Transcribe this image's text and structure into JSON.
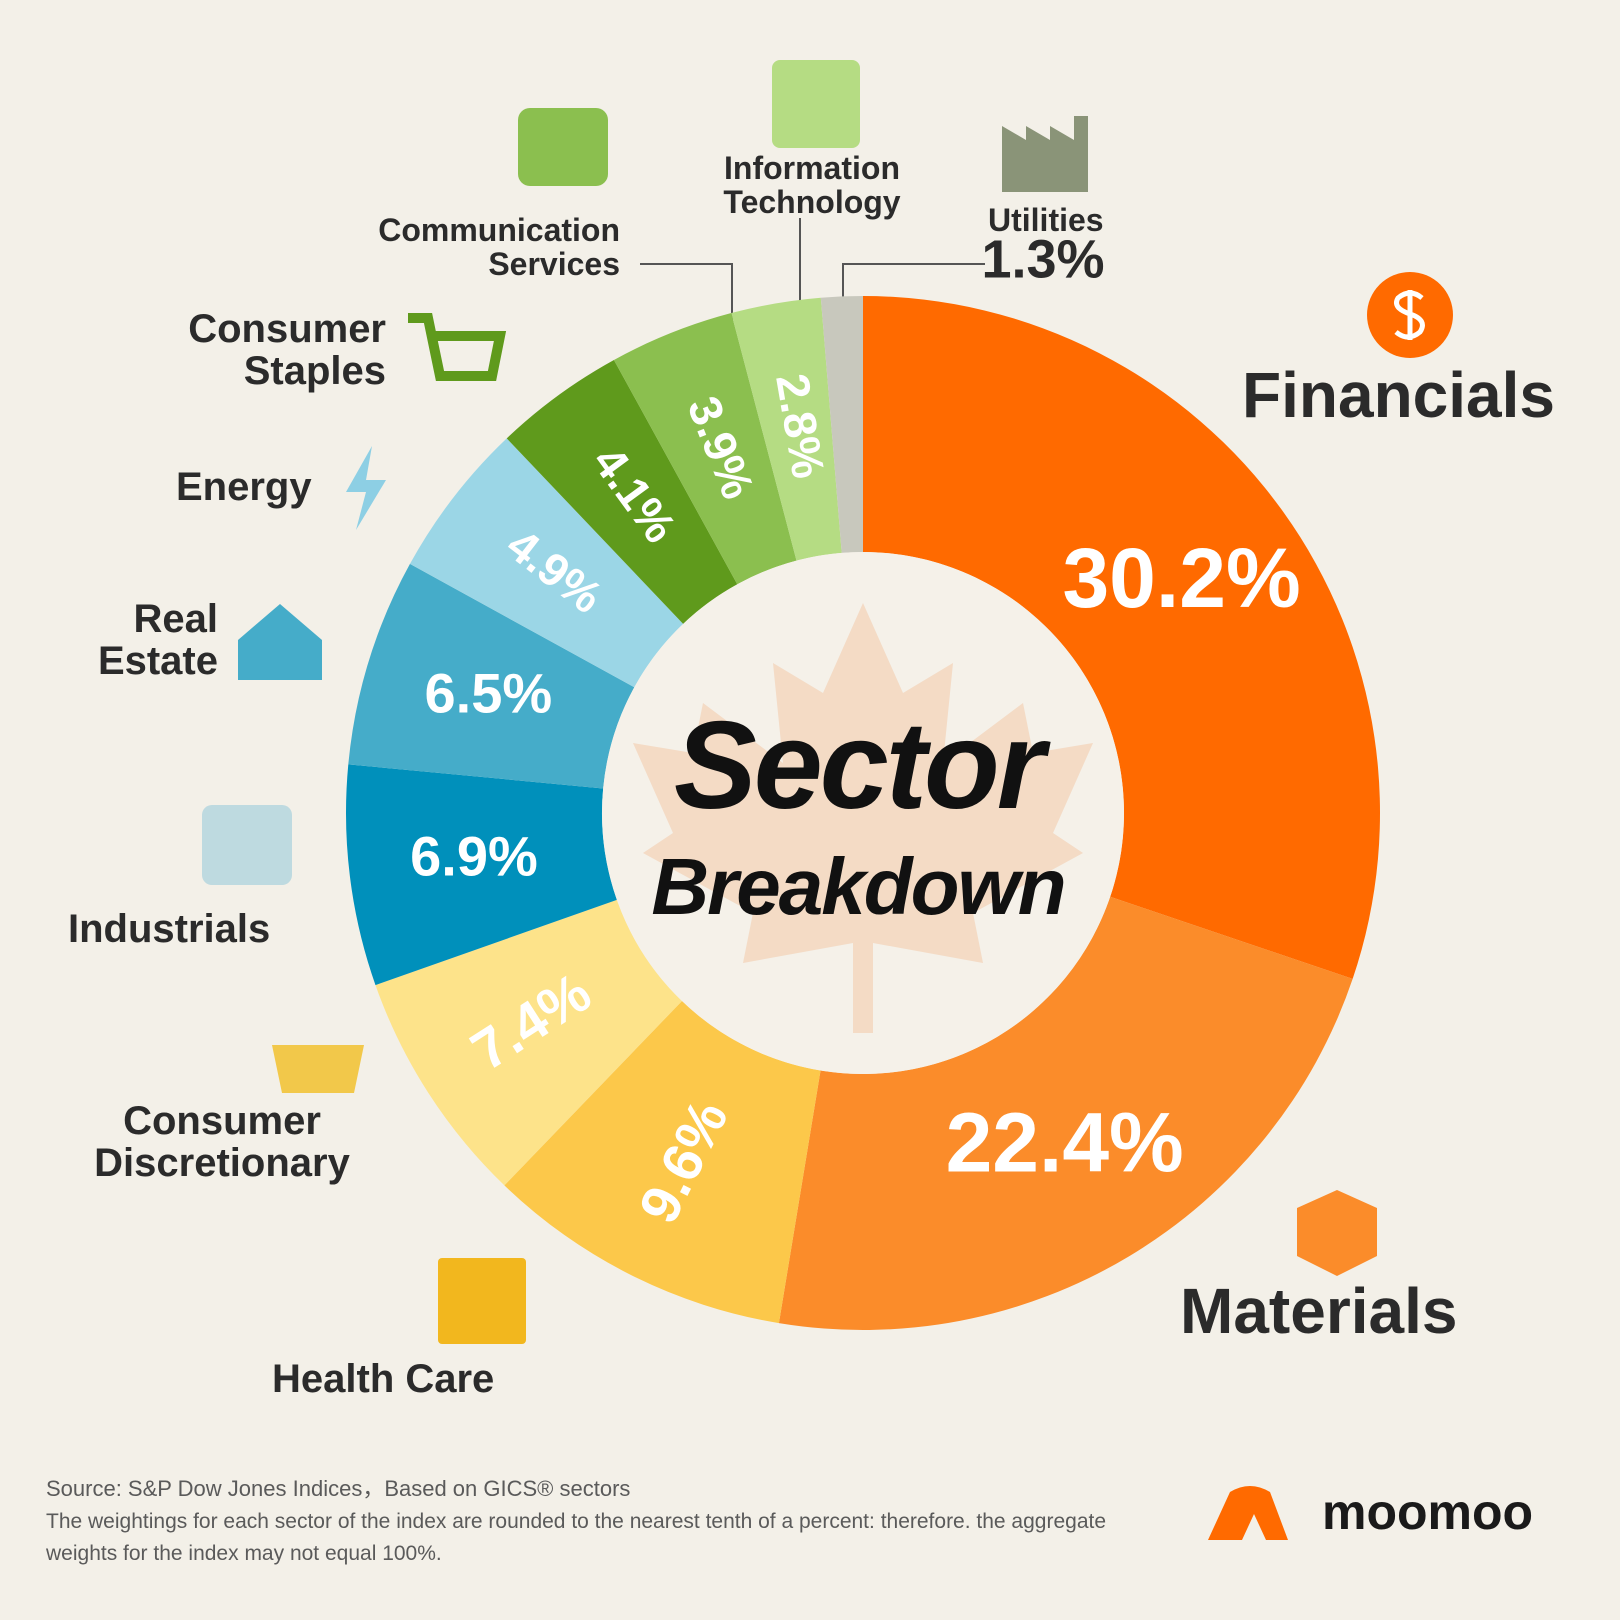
{
  "chart_data": {
    "type": "donut",
    "title": "Sector",
    "subtitle": "Breakdown",
    "categories": [
      "Financials",
      "Materials",
      "Health Care",
      "Consumer Discretionary",
      "Industrials",
      "Real Estate",
      "Energy",
      "Consumer Staples",
      "Communication Services",
      "Information Technology",
      "Utilities"
    ],
    "series": [
      {
        "values": [
          30.2,
          22.4,
          9.6,
          7.4,
          6.9,
          6.5,
          4.9,
          4.1,
          3.9,
          2.8,
          1.3
        ],
        "value_labels": [
          "30.2%",
          "22.4%",
          "9.6%",
          "7.4%",
          "6.9%",
          "6.5%",
          "4.9%",
          "4.1%",
          "3.9%",
          "2.8%",
          "1.3%"
        ],
        "colors": [
          "#ff6a00",
          "#fb8c2a",
          "#fcc84a",
          "#fde38a",
          "#0090bb",
          "#45acc9",
          "#9bd6e6",
          "#5f9a1c",
          "#8bbf4f",
          "#b5dc83",
          "#c8c8bd"
        ]
      }
    ],
    "source": "Source: S&P Dow Jones Indices，Based on GICS® sectors",
    "note": "The weightings for each sector of the index are rounded to the nearest tenth of a percent: therefore. the aggregate weights for the index may not equal 100%.",
    "brand": "moomoo"
  }
}
